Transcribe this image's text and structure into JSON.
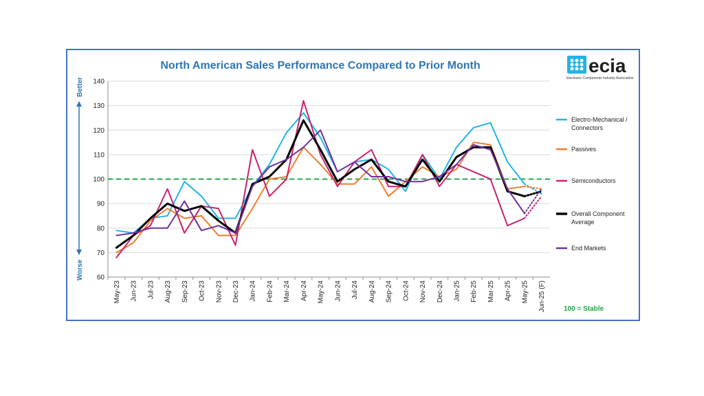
{
  "chart_data": {
    "type": "line",
    "title": "North American Sales Performance Compared to Prior Month",
    "y_axis": {
      "min": 60,
      "max": 140,
      "step": 10,
      "top_label": "Better",
      "bottom_label": "Worse"
    },
    "categories": [
      "May-23",
      "Jun-23",
      "Jul-23",
      "Aug-23",
      "Sep-23",
      "Oct-23",
      "Nov-23",
      "Dec-23",
      "Jan-24",
      "Feb-24",
      "Mar-24",
      "Apr-24",
      "May-24",
      "Jun-24",
      "Jul-24",
      "Aug-24",
      "Sep-24",
      "Oct-24",
      "Nov-24",
      "Dec-24",
      "Jan-25",
      "Feb-25",
      "Mar-25",
      "Apr-25",
      "May-25",
      "Jun-25 (F)"
    ],
    "reference_line": {
      "value": 100,
      "label": "100 = Stable",
      "color": "#22a34a"
    },
    "series": [
      {
        "name": "Electro-Mechanical / Connectors",
        "color": "#1fb5e6",
        "width": 2,
        "values": [
          79,
          78,
          84,
          85,
          99,
          93,
          84,
          84,
          97,
          106,
          119,
          127,
          117,
          103,
          107,
          108,
          104,
          95,
          110,
          100,
          113,
          121,
          123,
          107,
          98,
          94
        ]
      },
      {
        "name": "Passives",
        "color": "#ef7d2e",
        "width": 2,
        "values": [
          70,
          74,
          83,
          88,
          84,
          85,
          77,
          77,
          88,
          100,
          101,
          113,
          106,
          98,
          98,
          105,
          93,
          99,
          105,
          101,
          104,
          115,
          114,
          96,
          97,
          96
        ]
      },
      {
        "name": "Semiconductors",
        "color": "#c8206e",
        "width": 2,
        "values": [
          68,
          77,
          81,
          96,
          78,
          89,
          88,
          73,
          112,
          93,
          100,
          132,
          110,
          97,
          107,
          112,
          97,
          97,
          110,
          97,
          106,
          103,
          100,
          81,
          84,
          93
        ]
      },
      {
        "name": "Overall Component Average",
        "color": "#000000",
        "width": 3,
        "values": [
          72,
          77,
          84,
          90,
          87,
          89,
          83,
          78,
          98,
          101,
          108,
          124,
          112,
          99,
          104,
          108,
          99,
          97,
          108,
          99,
          109,
          113,
          113,
          95,
          93,
          95
        ]
      },
      {
        "name": "End Markets",
        "color": "#7030a0",
        "width": 2,
        "values": [
          77,
          78,
          80,
          80,
          91,
          79,
          81,
          78,
          97,
          105,
          108,
          113,
          120,
          103,
          107,
          101,
          101,
          99,
          99,
          101,
          106,
          114,
          112,
          96,
          86,
          96
        ]
      }
    ],
    "forecast_last_point": true,
    "legend_position": "right",
    "grid": "horizontal"
  },
  "logo": {
    "text": "ecia",
    "subtitle": "Electronic Components Industry Association",
    "color": "#1fb5e6"
  }
}
